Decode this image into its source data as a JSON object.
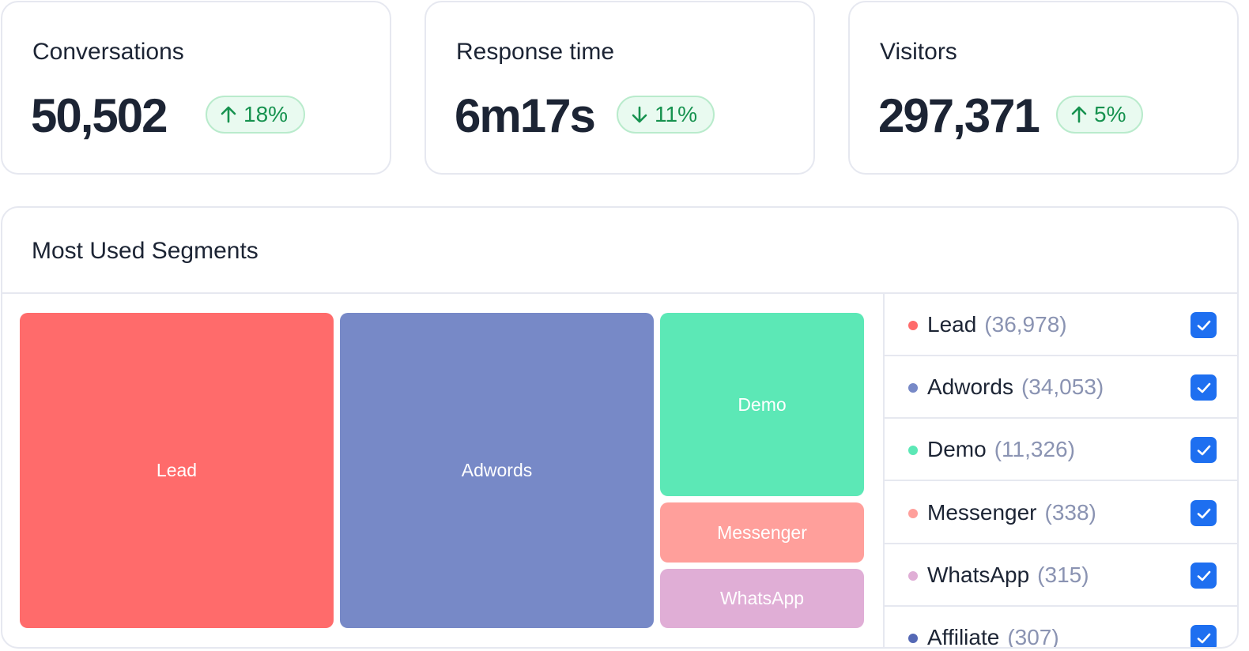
{
  "stats": [
    {
      "title": "Conversations",
      "value": "50,502",
      "change": "18%",
      "direction": "up"
    },
    {
      "title": "Response time",
      "value": "6m17s",
      "change": "11%",
      "direction": "down"
    },
    {
      "title": "Visitors",
      "value": "297,371",
      "change": "5%",
      "direction": "up"
    }
  ],
  "segments": {
    "title": "Most Used Segments",
    "tiles": [
      {
        "label": "Lead",
        "color": "#ff6b6b"
      },
      {
        "label": "Adwords",
        "color": "#7789c7"
      },
      {
        "label": "Demo",
        "color": "#5ce8b6"
      },
      {
        "label": "Messenger",
        "color": "#ff9f9b"
      },
      {
        "label": "WhatsApp",
        "color": "#e0aed6"
      }
    ],
    "legend": [
      {
        "name": "Lead",
        "count": "(36,978)",
        "color": "#ff6b6b",
        "checked": true
      },
      {
        "name": "Adwords",
        "count": "(34,053)",
        "color": "#7789c7",
        "checked": true
      },
      {
        "name": "Demo",
        "count": "(11,326)",
        "color": "#5ce8b6",
        "checked": true
      },
      {
        "name": "Messenger",
        "count": "(338)",
        "color": "#ff9f9b",
        "checked": true
      },
      {
        "name": "WhatsApp",
        "count": "(315)",
        "color": "#e0aed6",
        "checked": true
      },
      {
        "name": "Affiliate",
        "count": "(307)",
        "color": "#5468b5",
        "checked": true
      }
    ]
  },
  "icons": {
    "up": "arrow-up-icon",
    "down": "arrow-down-icon",
    "check": "checkmark-icon"
  },
  "colors": {
    "badge_bg": "#e9faf0",
    "badge_text": "#16924f",
    "checkbox": "#1e6ff0"
  }
}
